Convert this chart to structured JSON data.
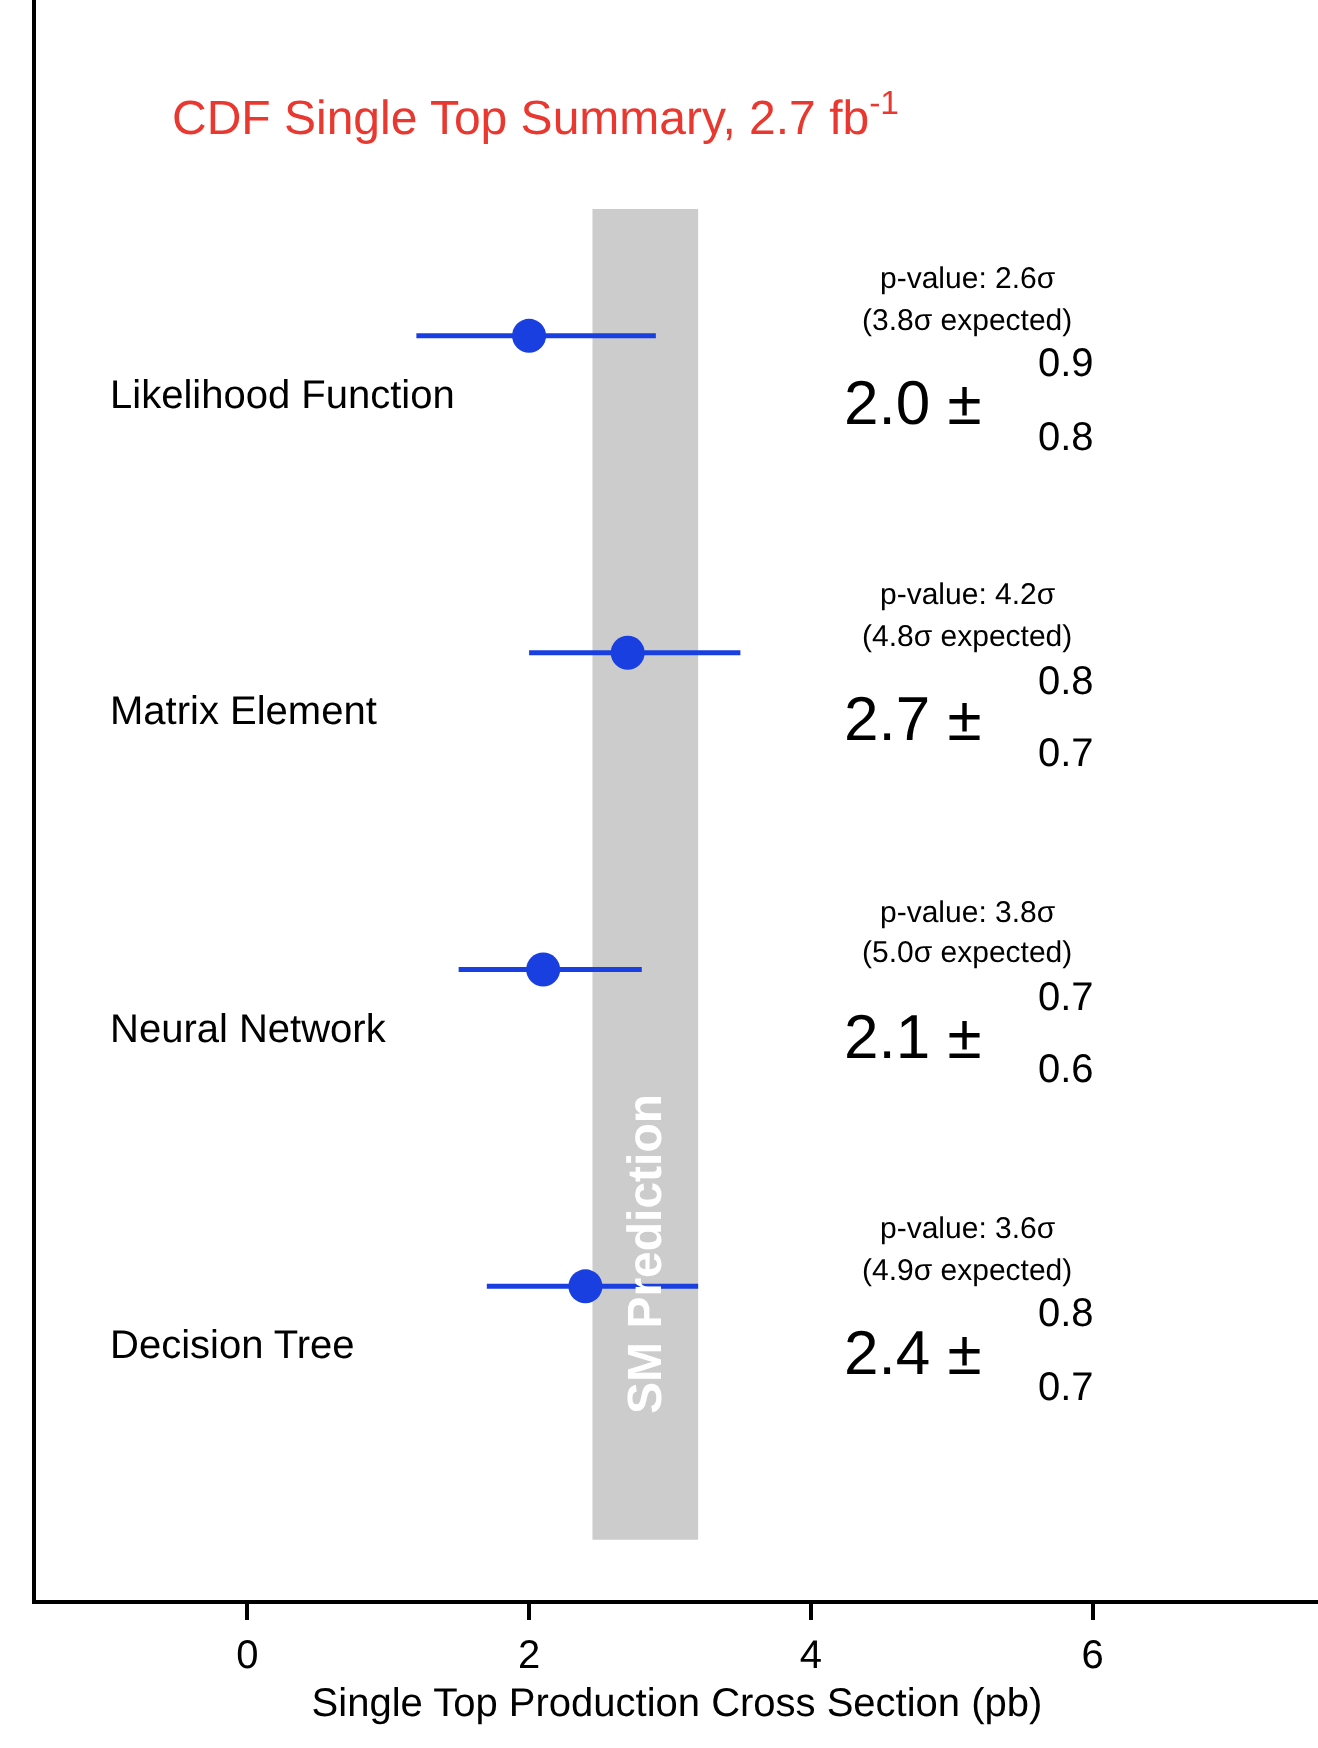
{
  "chart_data": {
    "type": "scatter",
    "orientation": "horizontal",
    "title": "CDF Single Top Summary, 2.7 fb$^{-1}$",
    "xlabel": "Single Top Production Cross Section (pb)",
    "categories": [
      "Likelihood Function",
      "Matrix Element",
      "Neural Network",
      "Decision Tree"
    ],
    "values": [
      2.0,
      2.7,
      2.1,
      2.4
    ],
    "errors": [
      [
        1.2,
        2.9
      ],
      [
        2.0,
        3.5
      ],
      [
        1.5,
        2.8
      ],
      [
        1.7,
        3.2
      ]
    ],
    "color": "#1a3fe0",
    "marker": "circle",
    "xlim": [
      -1.5,
      7.6
    ],
    "xticks": [
      0,
      2,
      4,
      6
    ],
    "grid": false,
    "bands": [
      {
        "axis": "x",
        "from": 2.45,
        "to": 3.2,
        "label": "SM Prediction",
        "color": "#cccccc"
      }
    ],
    "annotations": [
      "p-value: 2.6σ",
      "(3.8σ expected)",
      "2.0 ±",
      "0.9",
      "0.8",
      "p-value: 4.2σ",
      "(4.8σ expected)",
      "2.7 ±",
      "0.8",
      "0.7",
      "p-value: 3.8σ",
      "(5.0σ expected)",
      "2.1 ±",
      "0.7",
      "0.6",
      "p-value: 3.6σ",
      "(4.9σ expected)",
      "2.4 ±",
      "0.8",
      "0.7"
    ]
  }
}
